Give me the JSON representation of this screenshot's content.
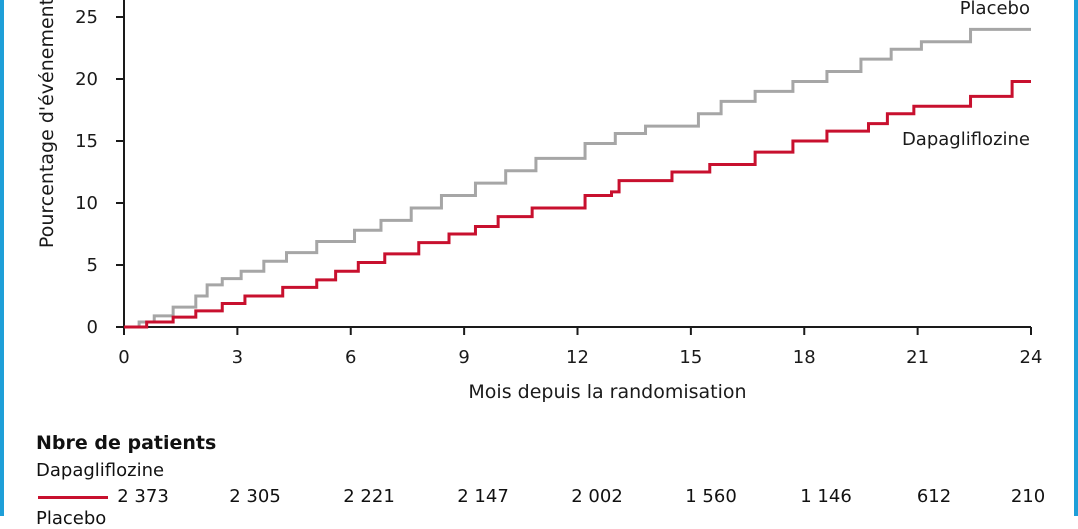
{
  "chart_data": {
    "type": "line",
    "title": "",
    "xlabel": "Mois depuis la randomisation",
    "ylabel": "Pourcentage d'événements",
    "xlim": [
      0,
      24
    ],
    "ylim": [
      0,
      25
    ],
    "xticks": [
      "0",
      "3",
      "6",
      "9",
      "12",
      "15",
      "18",
      "21",
      "24"
    ],
    "yticks": [
      "0",
      "5",
      "10",
      "15",
      "20",
      "25"
    ],
    "series": [
      {
        "name": "Placebo",
        "color": "#a6a6a6",
        "x": [
          0,
          0.4,
          0.8,
          1.3,
          1.9,
          2.2,
          2.6,
          3.1,
          3.7,
          4.3,
          5.1,
          6.1,
          6.8,
          7.6,
          8.4,
          9.3,
          10.1,
          10.9,
          12.2,
          13.0,
          13.8,
          15.2,
          15.8,
          16.7,
          17.7,
          18.6,
          19.5,
          20.3,
          21.1,
          22.4,
          24.0
        ],
        "y": [
          0,
          0.4,
          0.9,
          1.6,
          2.5,
          3.4,
          3.9,
          4.5,
          5.3,
          6.0,
          6.9,
          7.8,
          8.6,
          9.6,
          10.6,
          11.6,
          12.6,
          13.6,
          14.8,
          15.6,
          16.2,
          17.2,
          18.2,
          19.0,
          19.8,
          20.6,
          21.6,
          22.4,
          23.0,
          24.0,
          24.0
        ]
      },
      {
        "name": "Dapagliflozine",
        "color": "#c8102e",
        "x": [
          0,
          0.6,
          1.3,
          1.9,
          2.6,
          3.2,
          4.2,
          5.1,
          5.6,
          6.2,
          6.9,
          7.8,
          8.6,
          9.3,
          9.9,
          10.8,
          12.2,
          12.9,
          13.1,
          14.5,
          15.5,
          16.7,
          17.7,
          18.6,
          19.7,
          20.2,
          20.9,
          22.4,
          23.5,
          24.0
        ],
        "y": [
          0,
          0.4,
          0.8,
          1.3,
          1.9,
          2.5,
          3.2,
          3.8,
          4.5,
          5.2,
          5.9,
          6.8,
          7.5,
          8.1,
          8.9,
          9.6,
          10.6,
          10.9,
          11.8,
          12.5,
          13.1,
          14.1,
          15.0,
          15.8,
          16.4,
          17.2,
          17.8,
          18.6,
          19.8,
          19.8
        ]
      }
    ],
    "at_risk": {
      "title": "Nbre de patients",
      "groups": [
        {
          "name": "Dapagliflozine",
          "color": "#c8102e",
          "values": [
            "2 373",
            "2 305",
            "2 221",
            "2 147",
            "2 002",
            "1 560",
            "1 146",
            "612",
            "210"
          ]
        },
        {
          "name": "Placebo",
          "color": "#a6a6a6",
          "values": []
        }
      ]
    }
  }
}
